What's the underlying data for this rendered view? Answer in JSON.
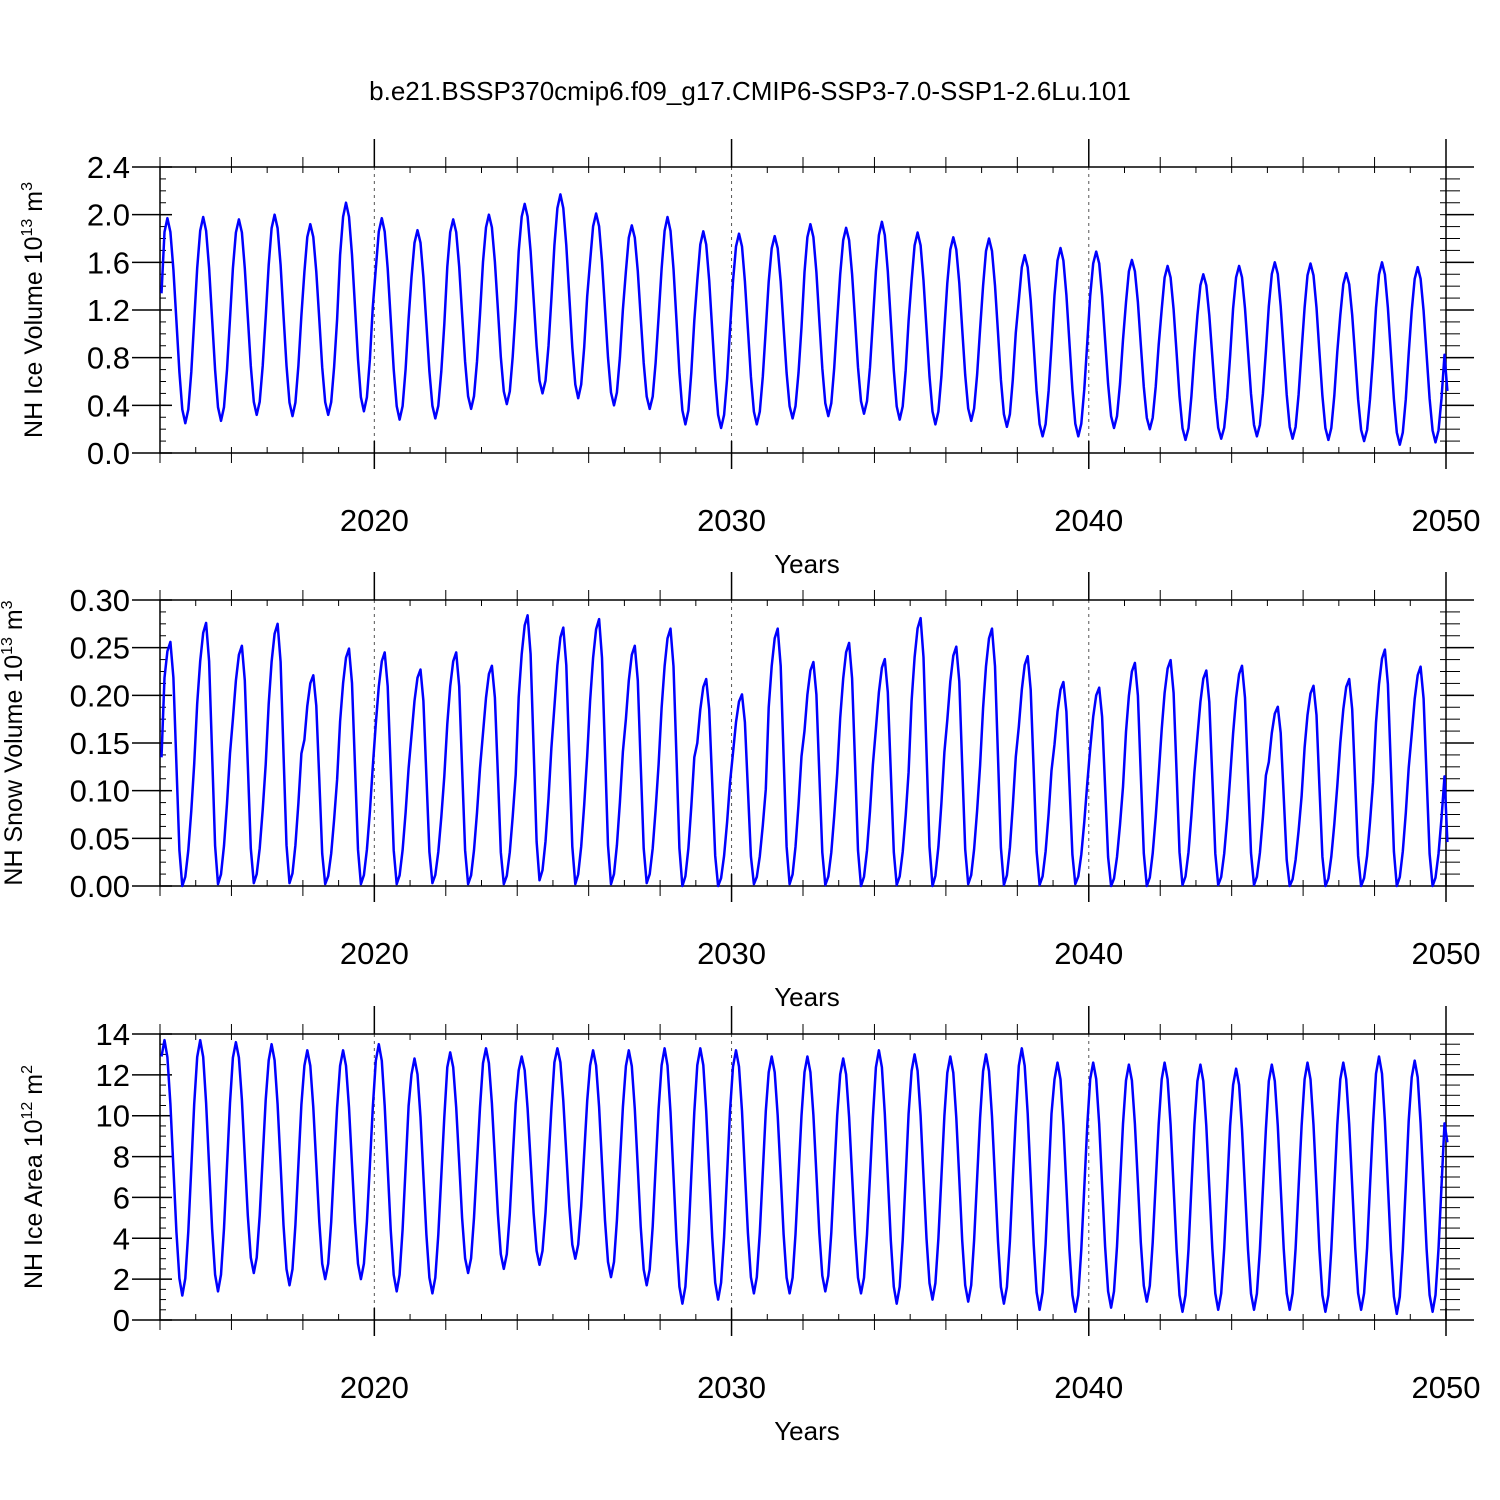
{
  "title": "b.e21.BSSP370cmip6.f09_g17.CMIP6-SSP3-7.0-SSP1-2.6Lu.101",
  "colors": {
    "series": "#0000ff",
    "axis": "#000000",
    "refline": "#555555"
  },
  "chart_data": [
    {
      "type": "line",
      "ylabel": "NH Ice Volume 10",
      "ylabel_exp": "13",
      "ylabel_unit": " m",
      "ylabel_unit_exp": "3",
      "xlabel": "Years",
      "xlim": [
        2014.0,
        2050.0
      ],
      "ylim": [
        0.0,
        2.4
      ],
      "x_ticks": [
        2020,
        2030,
        2040,
        2050
      ],
      "x_ticklabels": [
        "2020",
        "2030",
        "2040",
        "2050"
      ],
      "y_ticks": [
        0.0,
        0.4,
        0.8,
        1.2,
        1.6,
        2.0,
        2.4
      ],
      "y_ticklabels": [
        "0.0",
        "0.4",
        "0.8",
        "1.2",
        "1.6",
        "2.0",
        "2.4"
      ],
      "vlines": [
        2020,
        2030,
        2040
      ],
      "grid": false,
      "x_start": 2014.0417,
      "x_step": 0.08333,
      "annual_max": [
        1.97,
        1.98,
        1.96,
        2.0,
        1.92,
        2.1,
        1.97,
        1.87,
        1.96,
        2.0,
        2.09,
        2.17,
        2.01,
        1.91,
        1.98,
        1.86,
        1.84,
        1.82,
        1.92,
        1.89,
        1.94,
        1.85,
        1.81,
        1.8,
        1.66,
        1.72,
        1.69,
        1.62,
        1.57,
        1.5,
        1.57,
        1.6,
        1.59,
        1.51,
        1.6,
        1.56
      ],
      "annual_min": [
        0.25,
        0.27,
        0.32,
        0.31,
        0.32,
        0.35,
        0.28,
        0.29,
        0.37,
        0.41,
        0.5,
        0.46,
        0.4,
        0.37,
        0.24,
        0.21,
        0.24,
        0.29,
        0.31,
        0.33,
        0.28,
        0.24,
        0.27,
        0.22,
        0.14,
        0.14,
        0.21,
        0.2,
        0.11,
        0.12,
        0.14,
        0.12,
        0.11,
        0.1,
        0.07,
        0.09
      ],
      "first_value": 1.34,
      "last_value": 0.52,
      "peak_month": 3,
      "trough_month": 9
    },
    {
      "type": "line",
      "ylabel": "NH Snow Volume 10",
      "ylabel_exp": "13",
      "ylabel_unit": " m",
      "ylabel_unit_exp": "3",
      "xlabel": "Years",
      "xlim": [
        2014.0,
        2050.0
      ],
      "ylim": [
        0.0,
        0.3
      ],
      "x_ticks": [
        2020,
        2030,
        2040,
        2050
      ],
      "x_ticklabels": [
        "2020",
        "2030",
        "2040",
        "2050"
      ],
      "y_ticks": [
        0.0,
        0.05,
        0.1,
        0.15,
        0.2,
        0.25,
        0.3
      ],
      "y_ticklabels": [
        "0.00",
        "0.05",
        "0.10",
        "0.15",
        "0.20",
        "0.25",
        "0.30"
      ],
      "vlines": [
        2020,
        2030,
        2040
      ],
      "grid": false,
      "x_start": 2014.0417,
      "x_step": 0.08333,
      "annual_max": [
        0.256,
        0.276,
        0.252,
        0.275,
        0.221,
        0.249,
        0.245,
        0.227,
        0.245,
        0.231,
        0.284,
        0.271,
        0.28,
        0.252,
        0.27,
        0.217,
        0.201,
        0.27,
        0.235,
        0.255,
        0.238,
        0.281,
        0.251,
        0.27,
        0.241,
        0.214,
        0.208,
        0.234,
        0.237,
        0.226,
        0.231,
        0.188,
        0.21,
        0.217,
        0.248,
        0.23
      ],
      "annual_min": [
        0.0,
        0.002,
        0.003,
        0.003,
        0.002,
        0.002,
        0.002,
        0.003,
        0.002,
        0.002,
        0.006,
        0.002,
        0.002,
        0.003,
        0.0,
        0.0,
        0.002,
        0.002,
        0.001,
        0.0,
        0.001,
        0.0,
        0.002,
        0.001,
        0.001,
        0.002,
        0.0,
        0.0,
        0.001,
        0.001,
        0.001,
        0.0,
        0.0,
        0.0,
        0.0,
        0.0
      ],
      "first_value": 0.135,
      "last_value": 0.046,
      "peak_month": 4,
      "trough_month": 8
    },
    {
      "type": "line",
      "ylabel": "NH Ice Area 10",
      "ylabel_exp": "12",
      "ylabel_unit": " m",
      "ylabel_unit_exp": "2",
      "xlabel": "Years",
      "xlim": [
        2014.0,
        2050.0
      ],
      "ylim": [
        0,
        14
      ],
      "x_ticks": [
        2020,
        2030,
        2040,
        2050
      ],
      "x_ticklabels": [
        "2020",
        "2030",
        "2040",
        "2050"
      ],
      "y_ticks": [
        0,
        2,
        4,
        6,
        8,
        10,
        12,
        14
      ],
      "y_ticklabels": [
        "0",
        "2",
        "4",
        "6",
        "8",
        "10",
        "12",
        "14"
      ],
      "vlines": [
        2020,
        2030,
        2040
      ],
      "grid": false,
      "x_start": 2014.0417,
      "x_step": 0.08333,
      "annual_max": [
        13.7,
        13.7,
        13.6,
        13.5,
        13.2,
        13.2,
        13.5,
        12.8,
        13.1,
        13.3,
        12.9,
        13.3,
        13.2,
        13.2,
        13.3,
        13.3,
        13.2,
        12.9,
        12.9,
        12.8,
        13.2,
        13.0,
        12.9,
        13.0,
        13.3,
        12.6,
        12.6,
        12.5,
        12.6,
        12.5,
        12.3,
        12.5,
        12.6,
        12.6,
        12.9,
        12.7
      ],
      "annual_min": [
        1.2,
        1.4,
        2.3,
        1.7,
        2.0,
        2.0,
        1.4,
        1.3,
        2.3,
        2.5,
        2.7,
        3.0,
        2.1,
        1.7,
        0.8,
        1.0,
        1.3,
        1.3,
        1.4,
        1.3,
        0.8,
        1.0,
        0.9,
        0.8,
        0.5,
        0.4,
        0.6,
        0.9,
        0.4,
        0.5,
        0.5,
        0.5,
        0.4,
        0.5,
        0.3,
        0.4
      ],
      "first_value": 12.9,
      "last_value": 8.7,
      "peak_month": 2,
      "trough_month": 8
    }
  ]
}
